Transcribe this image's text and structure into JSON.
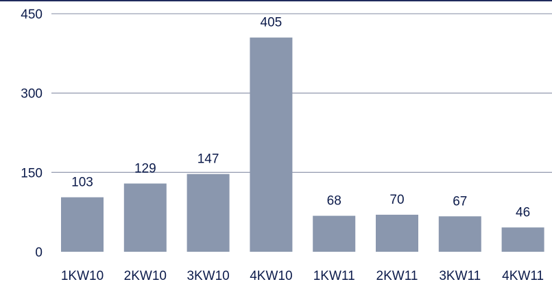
{
  "chart_data": {
    "type": "bar",
    "categories": [
      "1KW10",
      "2KW10",
      "3KW10",
      "4KW10",
      "1KW11",
      "2KW11",
      "3KW11",
      "4KW11"
    ],
    "values": [
      103,
      129,
      147,
      405,
      68,
      70,
      67,
      46
    ],
    "yticks": [
      0,
      150,
      300,
      450
    ],
    "ylim": [
      0,
      450
    ],
    "grid": true,
    "colors": {
      "bar": "#8a97ae",
      "grid": "#9aa0b4",
      "text": "#0b1a4a"
    }
  }
}
